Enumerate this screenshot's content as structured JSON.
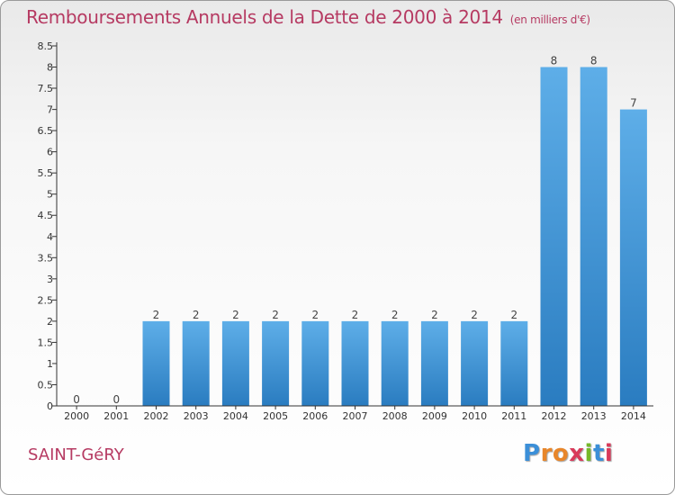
{
  "header": {
    "title": "Remboursements Annuels de la Dette de 2000 à 2014",
    "unit": "(en milliers d'€)"
  },
  "footer": {
    "town": "SAINT-GéRY",
    "logo": {
      "letters": [
        "P",
        "r",
        "o",
        "x",
        "i",
        "t",
        "i"
      ],
      "colors": [
        "#3b8fd8",
        "#e8862a",
        "#e8862a",
        "#d93a5a",
        "#76b82a",
        "#3b8fd8",
        "#d93a5a"
      ]
    }
  },
  "chart_data": {
    "type": "bar",
    "categories": [
      "2000",
      "2001",
      "2002",
      "2003",
      "2004",
      "2005",
      "2006",
      "2007",
      "2008",
      "2009",
      "2010",
      "2011",
      "2012",
      "2013",
      "2014"
    ],
    "values": [
      0,
      0,
      2,
      2,
      2,
      2,
      2,
      2,
      2,
      2,
      2,
      2,
      8,
      8,
      7
    ],
    "data_labels": [
      "0",
      "0",
      "2",
      "2",
      "2",
      "2",
      "2",
      "2",
      "2",
      "2",
      "2",
      "2",
      "8",
      "8",
      "7"
    ],
    "yticks": [
      0,
      0.5,
      1,
      1.5,
      2,
      2.5,
      3,
      3.5,
      4,
      4.5,
      5,
      5.5,
      6,
      6.5,
      7,
      7.5,
      8,
      8.5
    ],
    "ytick_labels": [
      "0",
      "0.5",
      "1",
      "1.5",
      "2",
      "2.5",
      "3",
      "3.5",
      "4",
      "4.5",
      "5",
      "5.5",
      "6",
      "6.5",
      "7",
      "7.5",
      "8",
      "8.5"
    ],
    "ylim": [
      0,
      8.5
    ],
    "grid": false,
    "colors": {
      "bar_light": "#5eaee8",
      "bar_dark": "#2a7cc0",
      "axis": "#333333"
    }
  }
}
